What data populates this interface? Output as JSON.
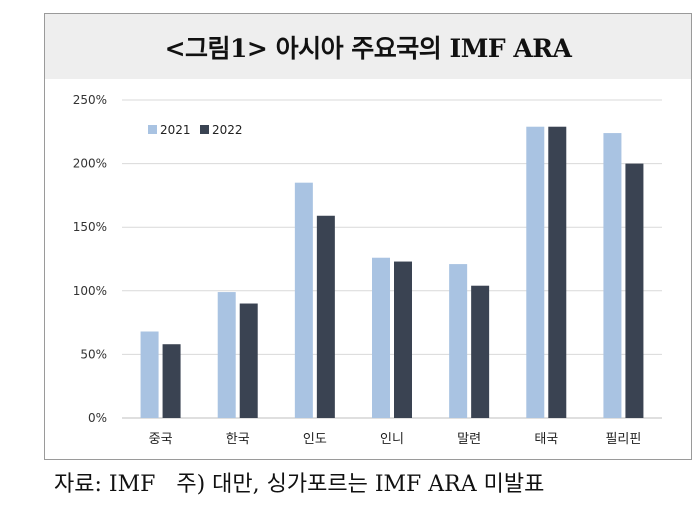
{
  "title": "<그림1> 아시아 주요국의 IMF ARA",
  "note": "자료: IMF   주) 대만, 싱가포르는 IMF ARA 미발표",
  "colors": {
    "s2021": "#a9c3e2",
    "s2022": "#3a4352",
    "grid": "#d9d9d9",
    "axis": "#bfbfbf"
  },
  "chart_data": {
    "type": "bar",
    "categories": [
      "중국",
      "한국",
      "인도",
      "인니",
      "말련",
      "태국",
      "필리핀"
    ],
    "series": [
      {
        "name": "2021",
        "values": [
          68,
          99,
          185,
          126,
          121,
          229,
          224
        ]
      },
      {
        "name": "2022",
        "values": [
          58,
          90,
          159,
          123,
          104,
          229,
          200
        ]
      }
    ],
    "ylim": [
      0,
      250
    ],
    "yticks": [
      0,
      50,
      100,
      150,
      200,
      250
    ],
    "ytick_labels": [
      "0%",
      "50%",
      "100%",
      "150%",
      "200%",
      "250%"
    ],
    "grid": true,
    "legend_position": "top-left"
  }
}
